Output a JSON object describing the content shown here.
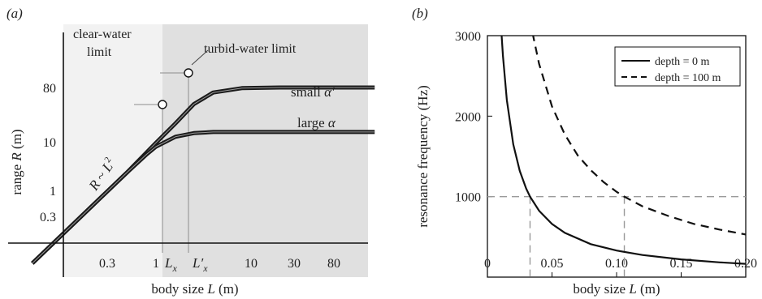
{
  "chart_data": [
    {
      "panel_label": "(a)",
      "type": "line",
      "scale": "log-log (schematic)",
      "xlabel_prefix": "body size ",
      "xlabel_var": "L",
      "xlabel_suffix": " (m)",
      "ylabel_prefix": "range ",
      "ylabel_var": "R",
      "ylabel_suffix": " (m)",
      "x_ticks": [
        "0.3",
        "1",
        "10",
        "30",
        "80"
      ],
      "y_ticks": [
        "0.3",
        "1",
        "10",
        "80"
      ],
      "x_marker_labels": [
        "L",
        "L′"
      ],
      "x_marker_subscript": "x",
      "region_labels": {
        "clear_line1": "clear-water",
        "clear_line2": "limit",
        "turbid": "turbid-water limit"
      },
      "annotations": {
        "slope_prefix": "R",
        "slope_tilde": " ~ ",
        "slope_var": "L",
        "slope_exp": "2",
        "small_prefix": "small ",
        "small_var": "α′",
        "large_prefix": "large ",
        "large_var": "α"
      },
      "series": [
        {
          "name": "small α′",
          "x": [
            0.05,
            0.5,
            1.0,
            1.6,
            2.5,
            4.0,
            8.0,
            20,
            80,
            200
          ],
          "y": [
            0.04,
            3,
            12,
            30,
            75,
            130,
            160,
            165,
            165,
            165
          ]
        },
        {
          "name": "large α",
          "x": [
            0.05,
            0.5,
            0.8,
            1.0,
            1.6,
            2.5,
            4.0,
            10,
            80,
            200
          ],
          "y": [
            0.04,
            3,
            7,
            10,
            16,
            19,
            20,
            20,
            20,
            20
          ]
        }
      ],
      "markers": [
        {
          "x": 1.0,
          "y": 20
        },
        {
          "x": 2.0,
          "y": 165
        }
      ],
      "colors": {
        "clear_region": "#f2f2f2",
        "turbid_region": "#e0e0e0",
        "curve": "#1a1a1a",
        "guide": "#8c8c8c"
      }
    },
    {
      "panel_label": "(b)",
      "type": "line",
      "xlabel_prefix": "body size ",
      "xlabel_var": "L",
      "xlabel_suffix": " (m)",
      "ylabel": "resonance frequency (Hz)",
      "xlim": [
        0,
        0.2
      ],
      "ylim": [
        0,
        3000
      ],
      "x_ticks": [
        "0",
        "0.05",
        "0.10",
        "0.15",
        "0.20"
      ],
      "y_ticks": [
        "1000",
        "2000",
        "3000"
      ],
      "series": [
        {
          "name": "depth = 0 m",
          "style": "solid",
          "x": [
            0.01,
            0.012,
            0.015,
            0.02,
            0.025,
            0.03,
            0.033,
            0.04,
            0.05,
            0.06,
            0.08,
            0.1,
            0.12,
            0.15,
            0.18,
            0.2
          ],
          "y": [
            3250,
            2750,
            2200,
            1650,
            1320,
            1100,
            1000,
            825,
            660,
            550,
            410,
            330,
            275,
            220,
            183,
            165
          ]
        },
        {
          "name": "depth = 100 m",
          "style": "dashed",
          "x": [
            0.035,
            0.04,
            0.05,
            0.06,
            0.07,
            0.08,
            0.09,
            0.1,
            0.106,
            0.12,
            0.14,
            0.16,
            0.18,
            0.2
          ],
          "y": [
            3030,
            2650,
            2120,
            1770,
            1510,
            1330,
            1180,
            1060,
            1000,
            880,
            760,
            660,
            590,
            530
          ]
        }
      ],
      "reference_line_y": 1000,
      "reference_x": [
        0.033,
        0.106
      ],
      "legend_position": "top-right",
      "colors": {
        "curve": "#111111",
        "guide": "#9a9a9a"
      }
    }
  ]
}
